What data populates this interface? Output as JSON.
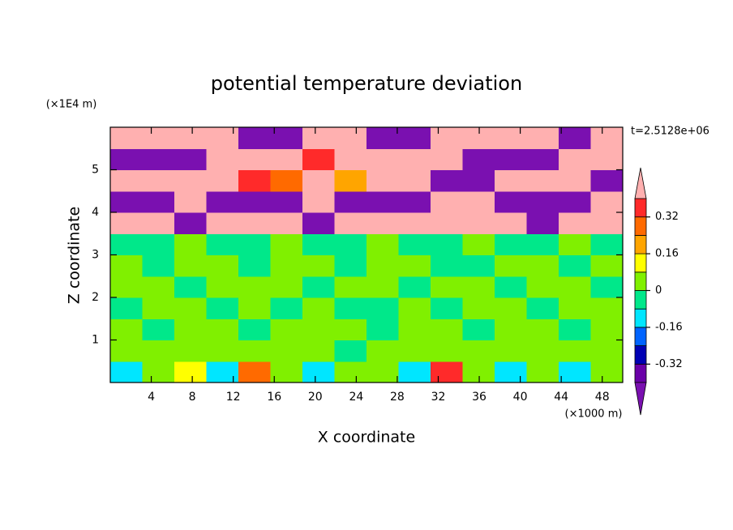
{
  "chart_data": {
    "type": "contour",
    "title": "potential temperature deviation",
    "x_label": "X coordinate",
    "y_label": "Z coordinate",
    "x_unit": "(×1000 m)",
    "y_unit": "(×1E4 m)",
    "annotation": "t=2.5128e+06",
    "xlim": [
      0,
      50
    ],
    "ylim": [
      0,
      6
    ],
    "xticks": [
      4,
      8,
      12,
      16,
      20,
      24,
      28,
      32,
      36,
      40,
      44,
      48
    ],
    "yticks": [
      1,
      2,
      3,
      4,
      5
    ],
    "levels": [
      -0.4,
      -0.32,
      -0.24,
      -0.16,
      -0.08,
      0,
      0.08,
      0.16,
      0.24,
      0.32,
      0.4
    ],
    "colors": [
      "#7a10b0",
      "#6a00a8",
      "#0000b4",
      "#0064ff",
      "#00e6ff",
      "#00e88a",
      "#80f000",
      "#ffff00",
      "#ffa500",
      "#ff6a00",
      "#ff2a2a",
      "#ffb0b0"
    ],
    "colorbar_ticks": [
      -0.32,
      -0.16,
      0,
      0.16,
      0.32
    ],
    "z": [
      [
        -0.1,
        0.05,
        0.1,
        -0.1,
        0.3,
        0.05,
        -0.1,
        0.05,
        0.02,
        -0.1,
        0.35,
        0.05,
        -0.1,
        0.02,
        -0.1,
        0.03
      ],
      [
        0.04,
        0.03,
        0.05,
        0.04,
        0.03,
        0.05,
        0.04,
        -0.02,
        0.04,
        0.03,
        0.05,
        0.04,
        0.03,
        0.04,
        0.05,
        0.03
      ],
      [
        0.04,
        -0.03,
        0.04,
        0.04,
        -0.03,
        0.04,
        0.04,
        0.04,
        -0.03,
        0.04,
        0.04,
        -0.03,
        0.04,
        0.04,
        -0.03,
        0.04
      ],
      [
        -0.03,
        0.04,
        0.04,
        -0.03,
        0.04,
        -0.03,
        0.04,
        -0.03,
        -0.03,
        0.04,
        -0.03,
        0.04,
        0.04,
        -0.03,
        0.04,
        0.04
      ],
      [
        0.04,
        0.04,
        -0.03,
        0.04,
        0.04,
        0.04,
        -0.03,
        0.04,
        0.04,
        -0.03,
        0.04,
        0.04,
        -0.03,
        0.04,
        0.04,
        -0.03
      ],
      [
        0.04,
        -0.03,
        0.04,
        0.04,
        -0.03,
        0.04,
        0.04,
        -0.03,
        0.04,
        0.04,
        -0.03,
        -0.03,
        0.04,
        0.04,
        -0.03,
        0.04
      ],
      [
        -0.03,
        -0.03,
        0.04,
        -0.03,
        -0.03,
        0.04,
        -0.03,
        -0.03,
        0.04,
        -0.03,
        -0.03,
        0.04,
        -0.03,
        -0.03,
        0.04,
        -0.03
      ],
      [
        0.5,
        0.5,
        -0.5,
        0.5,
        0.5,
        0.5,
        -0.5,
        0.5,
        0.5,
        0.5,
        0.5,
        0.5,
        0.5,
        -0.5,
        0.5,
        0.5
      ],
      [
        -0.5,
        -0.5,
        0.5,
        -0.5,
        -0.5,
        -0.5,
        0.5,
        -0.5,
        -0.5,
        -0.5,
        0.5,
        0.5,
        -0.5,
        -0.5,
        -0.5,
        0.5
      ],
      [
        0.5,
        0.5,
        0.5,
        0.5,
        0.35,
        0.3,
        0.5,
        0.2,
        0.5,
        0.5,
        -0.5,
        -0.5,
        0.5,
        0.5,
        0.5,
        -0.5
      ],
      [
        -0.5,
        -0.5,
        -0.5,
        0.5,
        0.5,
        0.5,
        0.35,
        0.5,
        0.5,
        0.5,
        0.5,
        -0.5,
        -0.5,
        -0.5,
        0.5,
        0.5
      ],
      [
        0.5,
        0.5,
        0.5,
        0.5,
        -0.5,
        -0.5,
        0.5,
        0.5,
        -0.5,
        -0.5,
        0.5,
        0.5,
        0.5,
        0.5,
        -0.5,
        0.5
      ]
    ]
  }
}
